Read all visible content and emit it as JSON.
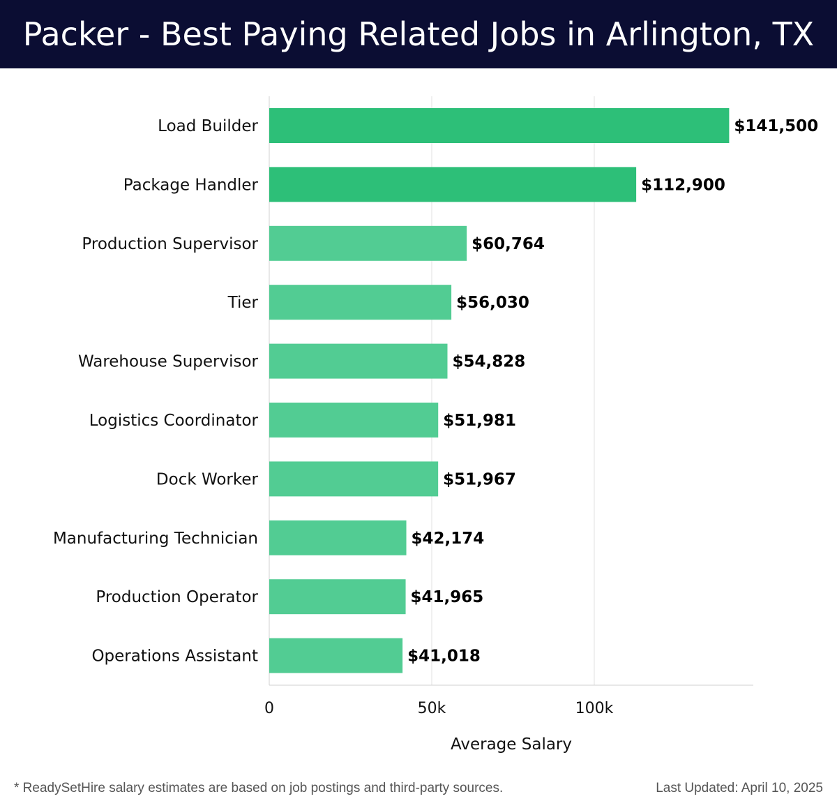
{
  "header": {
    "title": "Packer - Best Paying Related Jobs in Arlington, TX"
  },
  "chart_data": {
    "type": "bar",
    "orientation": "horizontal",
    "title": "Packer - Best Paying Related Jobs in Arlington, TX",
    "xlabel": "Average Salary",
    "ylabel": "",
    "categories": [
      "Load Builder",
      "Package Handler",
      "Production Supervisor",
      "Tier",
      "Warehouse Supervisor",
      "Logistics Coordinator",
      "Dock Worker",
      "Manufacturing Technician",
      "Production Operator",
      "Operations Assistant"
    ],
    "values": [
      141500,
      112900,
      60764,
      56030,
      54828,
      51981,
      51967,
      42174,
      41965,
      41018
    ],
    "value_labels": [
      "$141,500",
      "$112,900",
      "$60,764",
      "$56,030",
      "$54,828",
      "$51,981",
      "$51,967",
      "$42,174",
      "$41,965",
      "$41,018"
    ],
    "xlim": [
      0,
      149000
    ],
    "xticks": [
      0,
      50000,
      100000
    ],
    "xtick_labels": [
      "0",
      "50k",
      "100k"
    ],
    "grid": true,
    "colors": {
      "top_bars": "#2dbf78",
      "other_bars": "#52cc93",
      "grid": "#e2e2e2"
    }
  },
  "footer": {
    "note": "* ReadySetHire salary estimates are based on job postings and third-party sources.",
    "updated": "Last Updated: April 10, 2025"
  }
}
